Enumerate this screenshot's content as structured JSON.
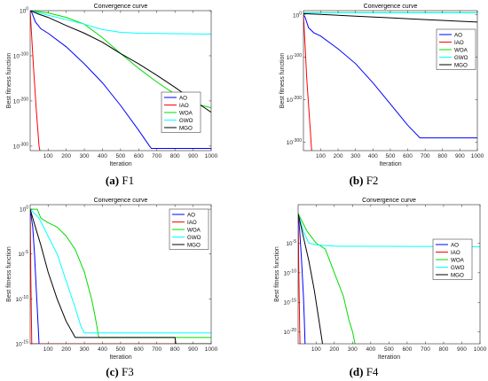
{
  "chart_data": [
    {
      "type": "line",
      "title": "Convergence curve",
      "xlabel": "Iteration",
      "ylabel": "Best fitness function",
      "xlim": [
        1,
        1000
      ],
      "ylim_log10": [
        -310,
        0
      ],
      "y_scale": "log",
      "x_ticks": [
        100,
        200,
        300,
        400,
        500,
        600,
        700,
        800,
        900,
        1000
      ],
      "y_ticks": [
        {
          "exp": 0,
          "label": "10^0"
        },
        {
          "exp": -100,
          "label": "10^-100"
        },
        {
          "exp": -200,
          "label": "10^-200"
        },
        {
          "exp": -300,
          "label": "10^-300"
        }
      ],
      "legend": "bottom-right",
      "caption": {
        "letter": "(a)",
        "name": "F1"
      },
      "series": [
        {
          "name": "AO",
          "color": "#0000ff",
          "points": [
            [
              1,
              0
            ],
            [
              10,
              -4
            ],
            [
              30,
              -25
            ],
            [
              60,
              -40
            ],
            [
              100,
              -50
            ],
            [
              200,
              -80
            ],
            [
              300,
              -118
            ],
            [
              400,
              -160
            ],
            [
              500,
              -210
            ],
            [
              600,
              -265
            ],
            [
              660,
              -300
            ],
            [
              670,
              -305
            ],
            [
              1000,
              -305
            ]
          ]
        },
        {
          "name": "IAO",
          "color": "#ff0000",
          "points": [
            [
              1,
              0
            ],
            [
              10,
              -60
            ],
            [
              20,
              -130
            ],
            [
              35,
              -220
            ],
            [
              50,
              -300
            ],
            [
              60,
              -320
            ]
          ]
        },
        {
          "name": "WOA",
          "color": "#00dd00",
          "points": [
            [
              1,
              0
            ],
            [
              20,
              -1
            ],
            [
              100,
              -5
            ],
            [
              200,
              -15
            ],
            [
              300,
              -30
            ],
            [
              400,
              -60
            ],
            [
              500,
              -95
            ],
            [
              600,
              -128
            ],
            [
              700,
              -158
            ],
            [
              800,
              -185
            ],
            [
              900,
              -205
            ],
            [
              1000,
              -215
            ]
          ]
        },
        {
          "name": "GWO",
          "color": "#00ffff",
          "points": [
            [
              1,
              0
            ],
            [
              50,
              -5
            ],
            [
              100,
              -10
            ],
            [
              200,
              -20
            ],
            [
              300,
              -30
            ],
            [
              400,
              -42
            ],
            [
              500,
              -48
            ],
            [
              600,
              -50
            ],
            [
              800,
              -51
            ],
            [
              1000,
              -52
            ]
          ]
        },
        {
          "name": "MGO",
          "color": "#000000",
          "points": [
            [
              1,
              0
            ],
            [
              50,
              -8
            ],
            [
              100,
              -15
            ],
            [
              200,
              -33
            ],
            [
              300,
              -50
            ],
            [
              400,
              -70
            ],
            [
              500,
              -95
            ],
            [
              600,
              -118
            ],
            [
              700,
              -143
            ],
            [
              800,
              -170
            ],
            [
              900,
              -198
            ],
            [
              1000,
              -225
            ]
          ]
        }
      ]
    },
    {
      "type": "line",
      "title": "Convergence curve",
      "xlabel": "Iteration",
      "ylabel": "Best fitness function",
      "xlim": [
        1,
        1000
      ],
      "ylim_log10": [
        -320,
        10
      ],
      "y_scale": "log",
      "x_ticks": [
        100,
        200,
        300,
        400,
        500,
        600,
        700,
        800,
        900,
        1000
      ],
      "y_ticks": [
        {
          "exp": 0,
          "label": "10^0"
        },
        {
          "exp": -100,
          "label": "10^-100"
        },
        {
          "exp": -200,
          "label": "10^-200"
        },
        {
          "exp": -300,
          "label": "10^-300"
        }
      ],
      "legend": "top-right",
      "caption": {
        "letter": "(b)",
        "name": "F2"
      },
      "series": [
        {
          "name": "AO",
          "color": "#0000ff",
          "points": [
            [
              1,
              0
            ],
            [
              10,
              -5
            ],
            [
              30,
              -30
            ],
            [
              60,
              -42
            ],
            [
              100,
              -50
            ],
            [
              200,
              -80
            ],
            [
              300,
              -115
            ],
            [
              400,
              -160
            ],
            [
              500,
              -210
            ],
            [
              600,
              -260
            ],
            [
              670,
              -290
            ],
            [
              680,
              -290
            ],
            [
              1000,
              -290
            ]
          ]
        },
        {
          "name": "IAO",
          "color": "#ff0000",
          "points": [
            [
              1,
              0
            ],
            [
              10,
              -70
            ],
            [
              20,
              -150
            ],
            [
              35,
              -240
            ],
            [
              45,
              -300
            ],
            [
              50,
              -330
            ]
          ]
        },
        {
          "name": "WOA",
          "color": "#00dd00",
          "points": [
            [
              1,
              5
            ],
            [
              1000,
              5
            ]
          ]
        },
        {
          "name": "GWO",
          "color": "#00ffff",
          "points": [
            [
              1,
              5
            ],
            [
              1000,
              5
            ]
          ]
        },
        {
          "name": "MGO",
          "color": "#000000",
          "points": [
            [
              1,
              3
            ],
            [
              100,
              1
            ],
            [
              300,
              -3
            ],
            [
              500,
              -7
            ],
            [
              700,
              -11
            ],
            [
              900,
              -15
            ],
            [
              1000,
              -17
            ]
          ]
        }
      ]
    },
    {
      "type": "line",
      "title": "Convergence curve",
      "xlabel": "Iteration",
      "ylabel": "Best fitness function",
      "xlim": [
        1,
        1000
      ],
      "ylim_log10": [
        -15,
        0.5
      ],
      "y_scale": "log",
      "x_ticks": [
        100,
        200,
        300,
        400,
        500,
        600,
        700,
        800,
        900,
        1000
      ],
      "y_ticks": [
        {
          "exp": 0,
          "label": "10^0"
        },
        {
          "exp": -5,
          "label": "10^-5"
        },
        {
          "exp": -10,
          "label": "10^-10"
        },
        {
          "exp": -15,
          "label": "10^-15"
        }
      ],
      "legend": "top-right",
      "caption": {
        "letter": "(c)",
        "name": "F3"
      },
      "series": [
        {
          "name": "AO",
          "color": "#0000ff",
          "points": [
            [
              1,
              0
            ],
            [
              15,
              -2
            ],
            [
              25,
              -5
            ],
            [
              35,
              -9
            ],
            [
              45,
              -13
            ],
            [
              50,
              -15
            ],
            [
              1000,
              -15
            ]
          ]
        },
        {
          "name": "IAO",
          "color": "#ff0000",
          "points": [
            [
              1,
              0
            ],
            [
              5,
              -8
            ],
            [
              10,
              -15
            ],
            [
              1000,
              -15
            ]
          ]
        },
        {
          "name": "WOA",
          "color": "#00dd00",
          "points": [
            [
              1,
              0
            ],
            [
              40,
              0
            ],
            [
              60,
              -1
            ],
            [
              100,
              -1.5
            ],
            [
              150,
              -2
            ],
            [
              200,
              -3
            ],
            [
              250,
              -4.5
            ],
            [
              300,
              -7
            ],
            [
              340,
              -10
            ],
            [
              360,
              -12
            ],
            [
              380,
              -14.3
            ],
            [
              1000,
              -14.3
            ]
          ]
        },
        {
          "name": "GWO",
          "color": "#00ffff",
          "points": [
            [
              1,
              0
            ],
            [
              50,
              -1
            ],
            [
              100,
              -3
            ],
            [
              150,
              -5
            ],
            [
              200,
              -8
            ],
            [
              250,
              -11
            ],
            [
              280,
              -13
            ],
            [
              300,
              -13.8
            ],
            [
              1000,
              -13.8
            ]
          ]
        },
        {
          "name": "MGO",
          "color": "#000000",
          "points": [
            [
              1,
              0
            ],
            [
              30,
              -2
            ],
            [
              60,
              -4
            ],
            [
              100,
              -7
            ],
            [
              150,
              -10
            ],
            [
              200,
              -12.5
            ],
            [
              250,
              -14.3
            ],
            [
              800,
              -14.3
            ],
            [
              805,
              -15
            ],
            [
              1000,
              -15
            ]
          ]
        }
      ]
    },
    {
      "type": "line",
      "title": "Convergence curve",
      "xlabel": "Iteration",
      "ylabel": "Best fitness function",
      "xlim": [
        1,
        1000
      ],
      "ylim_log10": [
        -22,
        1.5
      ],
      "y_scale": "log",
      "x_ticks": [
        100,
        200,
        300,
        400,
        500,
        600,
        700,
        800,
        900,
        1000
      ],
      "y_ticks": [
        {
          "exp": -5,
          "label": "10^-5"
        },
        {
          "exp": -10,
          "label": "10^-10"
        },
        {
          "exp": -15,
          "label": "10^-15"
        },
        {
          "exp": -20,
          "label": "10^-20"
        }
      ],
      "legend": "top-right",
      "caption": {
        "letter": "(d)",
        "name": "F4"
      },
      "series": [
        {
          "name": "AO",
          "color": "#0000ff",
          "points": [
            [
              1,
              0
            ],
            [
              10,
              -3
            ],
            [
              20,
              -8
            ],
            [
              30,
              -14
            ],
            [
              35,
              -18
            ],
            [
              40,
              -23
            ]
          ]
        },
        {
          "name": "IAO",
          "color": "#ff0000",
          "points": [
            [
              1,
              0
            ],
            [
              5,
              -10
            ],
            [
              10,
              -20
            ],
            [
              12,
              -23
            ]
          ]
        },
        {
          "name": "WOA",
          "color": "#00dd00",
          "points": [
            [
              1,
              0
            ],
            [
              50,
              -3
            ],
            [
              100,
              -5
            ],
            [
              150,
              -6
            ],
            [
              200,
              -10
            ],
            [
              250,
              -14
            ],
            [
              280,
              -18
            ],
            [
              300,
              -20
            ],
            [
              320,
              -23
            ]
          ]
        },
        {
          "name": "GWO",
          "color": "#00ffff",
          "points": [
            [
              1,
              0
            ],
            [
              30,
              -3
            ],
            [
              60,
              -5
            ],
            [
              100,
              -5.3
            ],
            [
              200,
              -5.5
            ],
            [
              1000,
              -5.6
            ]
          ]
        },
        {
          "name": "MGO",
          "color": "#000000",
          "points": [
            [
              1,
              0
            ],
            [
              30,
              -4
            ],
            [
              60,
              -8
            ],
            [
              90,
              -13
            ],
            [
              110,
              -17
            ],
            [
              130,
              -21
            ],
            [
              140,
              -23
            ]
          ]
        }
      ]
    }
  ]
}
